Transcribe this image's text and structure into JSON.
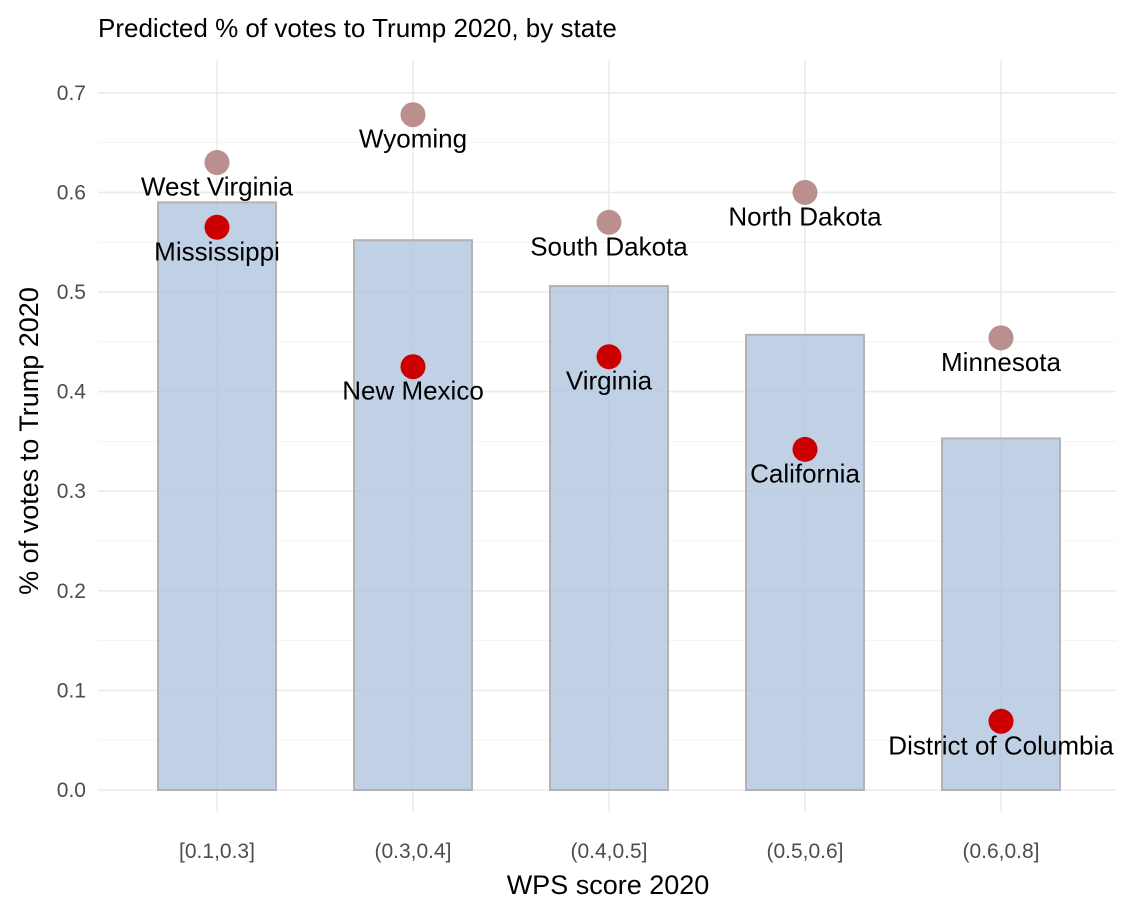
{
  "chart_data": {
    "type": "bar",
    "title": "Predicted % of votes to Trump 2020, by state",
    "xlabel": "WPS score 2020",
    "ylabel": "% of votes to Trump 2020",
    "categories": [
      "[0.1,0.3]",
      "(0.3,0.4]",
      "(0.4,0.5]",
      "(0.5,0.6]",
      "(0.6,0.8]"
    ],
    "values": [
      0.59,
      0.552,
      0.506,
      0.457,
      0.353
    ],
    "ylim": [
      0,
      0.72
    ],
    "yticks": [
      0.0,
      0.1,
      0.2,
      0.3,
      0.4,
      0.5,
      0.6,
      0.7
    ],
    "ytick_labels": [
      "0.0",
      "0.1",
      "0.2",
      "0.3",
      "0.4",
      "0.5",
      "0.6",
      "0.7"
    ],
    "grid": true,
    "legend": "none",
    "points": [
      {
        "category": "[0.1,0.3]",
        "state": "West Virginia",
        "value": 0.63,
        "group": "max"
      },
      {
        "category": "[0.1,0.3]",
        "state": "Mississippi",
        "value": 0.565,
        "group": "min"
      },
      {
        "category": "(0.3,0.4]",
        "state": "Wyoming",
        "value": 0.678,
        "group": "max"
      },
      {
        "category": "(0.3,0.4]",
        "state": "New Mexico",
        "value": 0.425,
        "group": "min"
      },
      {
        "category": "(0.4,0.5]",
        "state": "South Dakota",
        "value": 0.57,
        "group": "max"
      },
      {
        "category": "(0.4,0.5]",
        "state": "Virginia",
        "value": 0.435,
        "group": "min"
      },
      {
        "category": "(0.5,0.6]",
        "state": "North Dakota",
        "value": 0.6,
        "group": "max"
      },
      {
        "category": "(0.5,0.6]",
        "state": "California",
        "value": 0.342,
        "group": "min"
      },
      {
        "category": "(0.6,0.8]",
        "state": "Minnesota",
        "value": 0.454,
        "group": "max"
      },
      {
        "category": "(0.6,0.8]",
        "state": "District of Columbia",
        "value": 0.069,
        "group": "min"
      }
    ],
    "colors": {
      "bar_fill": "#b0c4de",
      "bar_outline": "#b3b3b3",
      "max_point": "#bc8f8f",
      "min_point": "#cc0000"
    }
  }
}
